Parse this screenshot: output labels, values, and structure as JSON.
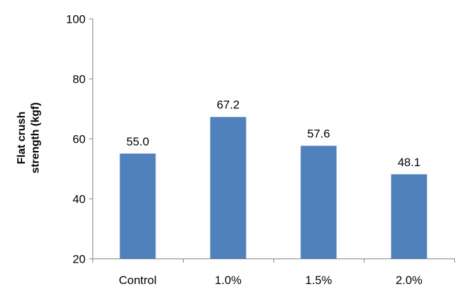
{
  "chart_data": {
    "type": "bar",
    "categories": [
      "Control",
      "1.0%",
      "1.5%",
      "2.0%"
    ],
    "values": [
      55.0,
      67.2,
      57.6,
      48.1
    ],
    "data_labels": [
      "55.0",
      "67.2",
      "57.6",
      "48.1"
    ],
    "title": "",
    "xlabel": "",
    "ylabel_lines": [
      "Flat crush",
      "strength (kgf)"
    ],
    "ylim": [
      20,
      100
    ],
    "yticks": [
      20,
      40,
      60,
      80,
      100
    ],
    "ytick_labels": [
      "20",
      "40",
      "60",
      "80",
      "100"
    ],
    "grid": false,
    "legend": "none",
    "bar_color": "#4f81bd"
  }
}
